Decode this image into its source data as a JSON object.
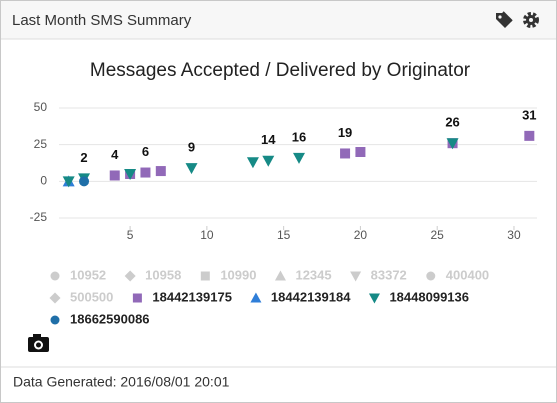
{
  "header": {
    "title": "Last Month SMS Summary"
  },
  "chart_data": {
    "type": "scatter",
    "title": "Messages Accepted / Delivered by Originator",
    "xlim": [
      0.5,
      31.5
    ],
    "xticks": [
      5,
      10,
      15,
      20,
      25,
      30
    ],
    "ylim": [
      -25,
      50
    ],
    "yticks": [
      -25,
      0,
      25,
      50
    ],
    "grid": true,
    "series": [
      {
        "name": "10952",
        "marker": "circle",
        "visible": false,
        "color": "#cccccc",
        "x": [],
        "values": []
      },
      {
        "name": "10958",
        "marker": "diamond",
        "visible": false,
        "color": "#cccccc",
        "x": [],
        "values": []
      },
      {
        "name": "10990",
        "marker": "square",
        "visible": false,
        "color": "#cccccc",
        "x": [],
        "values": []
      },
      {
        "name": "12345",
        "marker": "triangle",
        "visible": false,
        "color": "#cccccc",
        "x": [],
        "values": []
      },
      {
        "name": "83372",
        "marker": "triangle-down",
        "visible": false,
        "color": "#cccccc",
        "x": [],
        "values": []
      },
      {
        "name": "400400",
        "marker": "circle",
        "visible": false,
        "color": "#cccccc",
        "x": [],
        "values": []
      },
      {
        "name": "500500",
        "marker": "diamond",
        "visible": false,
        "color": "#cccccc",
        "x": [],
        "values": []
      },
      {
        "name": "18442139175",
        "marker": "square",
        "visible": true,
        "color": "#9169b8",
        "x": [
          4,
          5,
          6,
          7,
          19,
          20,
          26,
          31
        ],
        "values": [
          4,
          5,
          6,
          7,
          19,
          20,
          26,
          31
        ]
      },
      {
        "name": "18442139184",
        "marker": "triangle",
        "visible": true,
        "color": "#2f7ed8",
        "x": [
          1
        ],
        "values": [
          0
        ]
      },
      {
        "name": "18448099136",
        "marker": "triangle-down",
        "visible": true,
        "color": "#168a86",
        "x": [
          1,
          2,
          5,
          9,
          13,
          14,
          16,
          26
        ],
        "values": [
          0,
          2,
          5,
          9,
          13,
          14,
          16,
          26
        ]
      },
      {
        "name": "18662590086",
        "marker": "circle",
        "visible": true,
        "color": "#1f6fa8",
        "x": [
          2
        ],
        "values": [
          0
        ]
      }
    ],
    "data_labels": {
      "x": [
        2,
        4,
        6,
        9,
        14,
        16,
        19,
        26,
        31
      ],
      "values": [
        2,
        4,
        6,
        9,
        14,
        16,
        19,
        26,
        31
      ]
    }
  },
  "footer": {
    "text": "Data Generated: 2016/08/01 20:01"
  }
}
